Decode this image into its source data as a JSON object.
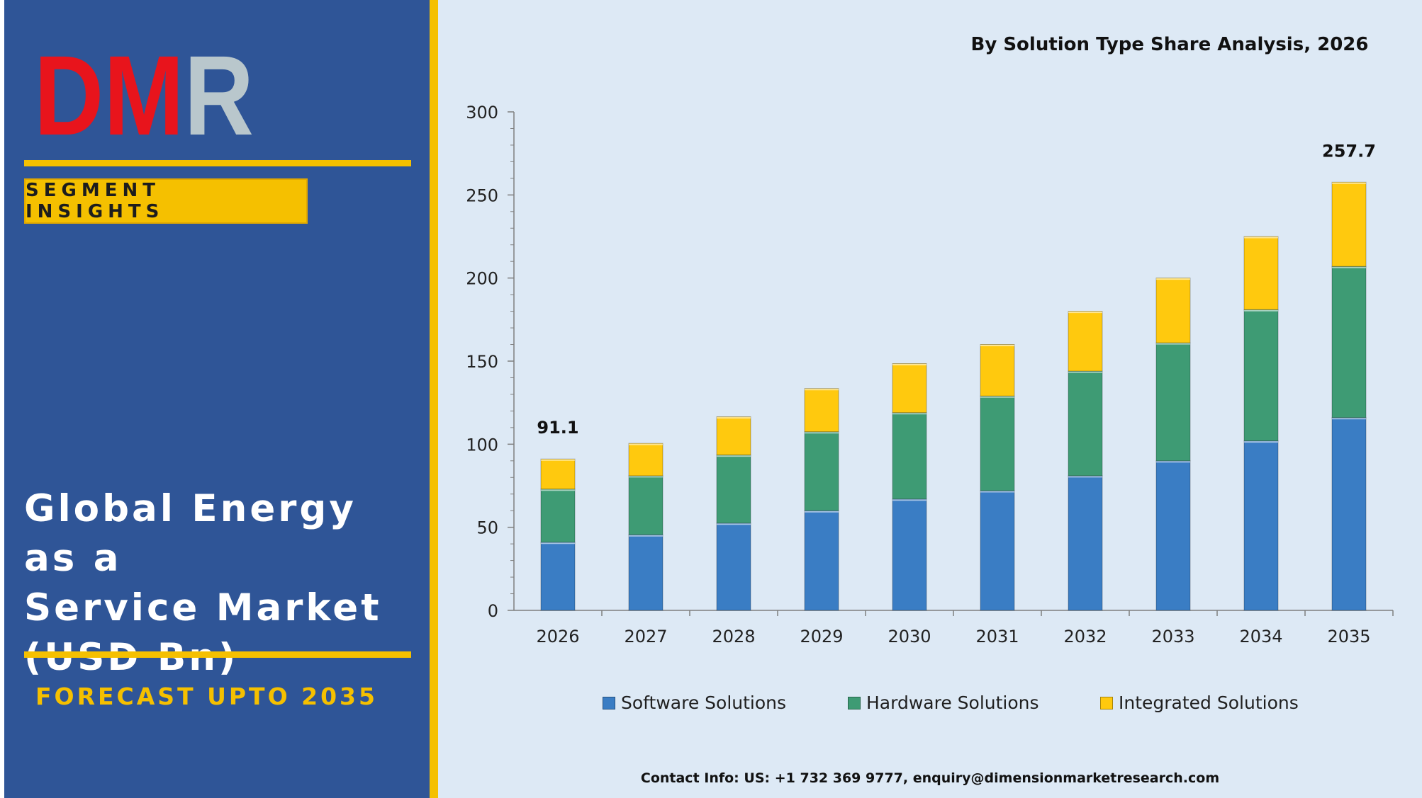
{
  "logo": {
    "text": "DMR",
    "colors": {
      "D": "#e8141c",
      "M": "#e8141c",
      "R": "#b9c7cc"
    }
  },
  "sidebar": {
    "badge": "SEGMENT INSIGHTS",
    "title": "Global Energy as a\nService Market\n(USD Bn)",
    "forecast": "FORECAST UPTO 2035"
  },
  "colors": {
    "sidebar_bg": "#2f5597",
    "accent": "#f5c000",
    "chart_bg": "#dde9f5"
  },
  "chart_data": {
    "type": "bar",
    "stacked": true,
    "title": "By Solution Type Share Analysis, 2026",
    "categories": [
      "2026",
      "2027",
      "2028",
      "2029",
      "2030",
      "2031",
      "2032",
      "2033",
      "2034",
      "2035"
    ],
    "series": [
      {
        "name": "Software Solutions",
        "color": "#3a7dc4",
        "values": [
          41,
          45.5,
          52.5,
          60,
          67,
          72,
          81,
          90,
          102,
          116
        ]
      },
      {
        "name": "Hardware Solutions",
        "color": "#3e9b74",
        "values": [
          32,
          35.5,
          41,
          47.5,
          52,
          57,
          63,
          71,
          79,
          91
        ]
      },
      {
        "name": "Integrated Solutions",
        "color": "#ffc90e",
        "values": [
          18.1,
          19.5,
          23,
          26,
          29.5,
          31,
          36,
          39,
          44,
          50.7
        ]
      }
    ],
    "data_labels": [
      {
        "category": "2026",
        "text": "91.1"
      },
      {
        "category": "2035",
        "text": "257.7"
      }
    ],
    "ylim": [
      0,
      300
    ],
    "yticks": [
      0,
      50,
      100,
      150,
      200,
      250,
      300
    ],
    "grid": false,
    "legend_position": "bottom"
  },
  "footer": {
    "contact": "Contact Info: US: +1 732 369 9777, enquiry@dimensionmarketresearch.com"
  }
}
